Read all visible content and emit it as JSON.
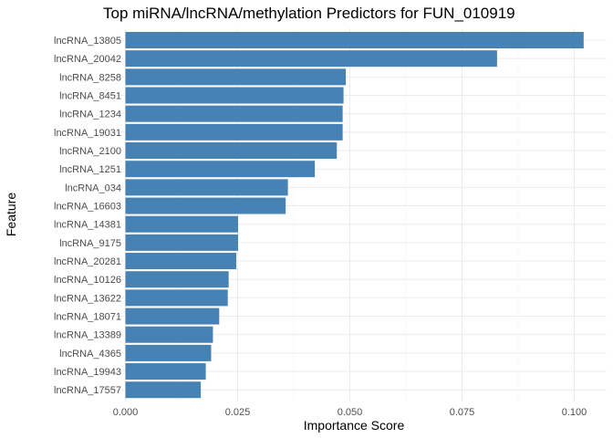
{
  "chart_data": {
    "type": "bar",
    "orientation": "horizontal",
    "title": "Top miRNA/lncRNA/methylation Predictors for FUN_010919",
    "xlabel": "Importance Score",
    "ylabel": "Feature",
    "xlim": [
      0,
      0.1
    ],
    "x_ticks": [
      "0.000",
      "0.025",
      "0.050",
      "0.075",
      "0.100"
    ],
    "x_tick_values": [
      0,
      0.025,
      0.05,
      0.075,
      0.1
    ],
    "grid": true,
    "bar_color": "#4682b4",
    "categories": [
      "lncRNA_13805",
      "lncRNA_20042",
      "lncRNA_8258",
      "lncRNA_8451",
      "lncRNA_1234",
      "lncRNA_19031",
      "lncRNA_2100",
      "lncRNA_1251",
      "lncRNA_034",
      "lncRNA_16603",
      "lncRNA_14381",
      "lncRNA_9175",
      "lncRNA_20281",
      "lncRNA_10126",
      "lncRNA_13622",
      "lncRNA_18071",
      "lncRNA_13389",
      "lncRNA_4365",
      "lncRNA_19943",
      "lncRNA_17557"
    ],
    "values": [
      0.1021,
      0.0828,
      0.0491,
      0.0486,
      0.0484,
      0.0484,
      0.0471,
      0.0422,
      0.0362,
      0.0357,
      0.0251,
      0.0251,
      0.0247,
      0.023,
      0.0228,
      0.0209,
      0.0195,
      0.0191,
      0.0179,
      0.0168
    ]
  }
}
